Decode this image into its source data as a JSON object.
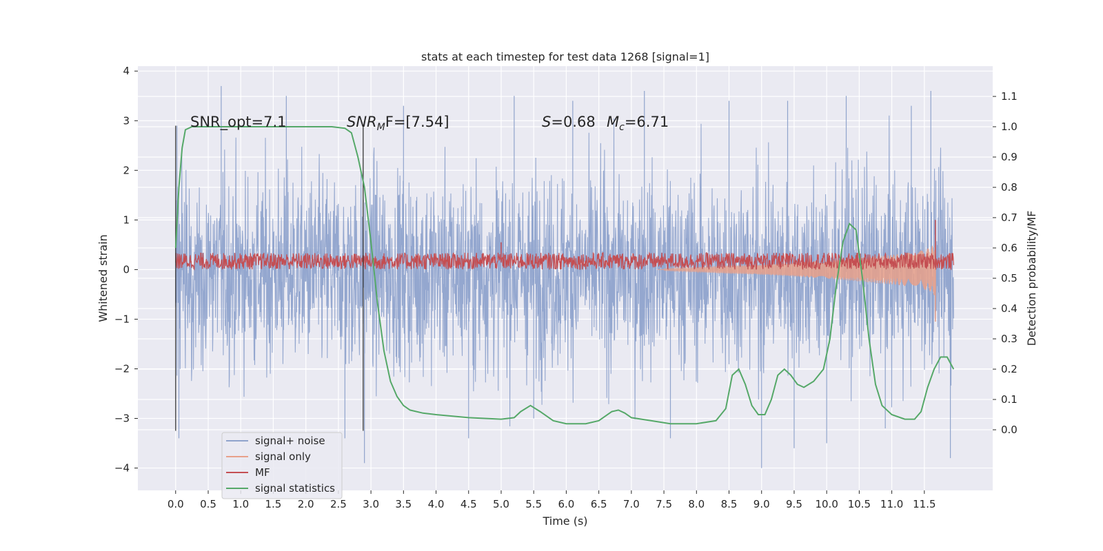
{
  "chart_data": {
    "type": "line",
    "title": "stats at each timestep for test data 1268 [signal=1]",
    "xlabel": "Time (s)",
    "ylabel": "Whitened strain",
    "ylabel_right": "Detection probability/MF",
    "xlim": [
      -0.58,
      12.55
    ],
    "ylim": [
      -4.45,
      4.1
    ],
    "ylim_right": [
      -0.2,
      1.2
    ],
    "x_ticks": [
      "0.0",
      "0.5",
      "1.0",
      "1.5",
      "2.0",
      "2.5",
      "3.0",
      "3.5",
      "4.0",
      "4.5",
      "5.0",
      "5.5",
      "6.0",
      "6.5",
      "7.0",
      "7.5",
      "8.0",
      "8.5",
      "9.0",
      "9.5",
      "10.0",
      "10.5",
      "11.0",
      "11.5"
    ],
    "y_ticks": [
      "4",
      "3",
      "2",
      "1",
      "0",
      "−1",
      "−2",
      "−3",
      "−4"
    ],
    "y_ticks_right": [
      "1.1",
      "1.0",
      "0.9",
      "0.8",
      "0.7",
      "0.6",
      "0.5",
      "0.4",
      "0.3",
      "0.2",
      "0.1",
      "0.0"
    ],
    "grid": true,
    "legend_position": "lower-left",
    "annotations": {
      "snr_opt": "SNR_opt=7.1",
      "snr_mf_symbol": "SNR",
      "snr_mf_sub": "M",
      "snr_mf_rest": "F=[7.54]",
      "s_symbol": "S",
      "s_value": "=0.68",
      "mc_symbol": "M",
      "mc_sub": "c",
      "mc_value": "=6.71"
    },
    "vlines_x": [
      0.0,
      2.88
    ],
    "series": [
      {
        "name": "signal+ noise",
        "color": "#8fa3cc",
        "axis": "left",
        "x_range": [
          0.0,
          11.95
        ],
        "typical_band": [
          -1.9,
          1.8
        ],
        "peaks": [
          [
            0.02,
            2.9
          ],
          [
            0.7,
            3.7
          ],
          [
            1.7,
            3.5
          ],
          [
            3.5,
            3.3
          ],
          [
            5.2,
            3.5
          ],
          [
            6.1,
            3.4
          ],
          [
            7.2,
            3.6
          ],
          [
            8.5,
            3.4
          ],
          [
            9.4,
            3.4
          ],
          [
            10.3,
            3.5
          ],
          [
            11.3,
            3.3
          ],
          [
            11.6,
            3.6
          ]
        ],
        "troughs": [
          [
            0.05,
            -3.4
          ],
          [
            2.6,
            -3.4
          ],
          [
            2.9,
            -3.9
          ],
          [
            4.5,
            -3.4
          ],
          [
            5.5,
            -3.0
          ],
          [
            7.6,
            -3.4
          ],
          [
            9.0,
            -4.0
          ],
          [
            9.5,
            -3.6
          ],
          [
            10.0,
            -3.5
          ],
          [
            10.9,
            -3.2
          ],
          [
            11.9,
            -3.8
          ]
        ]
      },
      {
        "name": "signal only",
        "color": "#e8a08a",
        "axis": "left",
        "envelope": [
          [
            7.5,
            0.02
          ],
          [
            8.0,
            0.05
          ],
          [
            8.5,
            0.08
          ],
          [
            9.0,
            0.1
          ],
          [
            9.5,
            0.14
          ],
          [
            10.0,
            0.18
          ],
          [
            10.5,
            0.24
          ],
          [
            11.0,
            0.3
          ],
          [
            11.4,
            0.36
          ],
          [
            11.6,
            0.45
          ],
          [
            11.67,
            0.55
          ],
          [
            11.68,
            0.0
          ]
        ],
        "lower_extreme": -1.05
      },
      {
        "name": "MF",
        "color": "#c44e52",
        "axis": "left",
        "mean": 0.17,
        "spread": 0.17,
        "spikes": [
          [
            5.0,
            0.55
          ],
          [
            11.67,
            1.0
          ]
        ],
        "x_range": [
          0.0,
          11.95
        ]
      },
      {
        "name": "signal statistics",
        "color": "#55a868",
        "axis": "right",
        "x": [
          0.0,
          0.05,
          0.1,
          0.15,
          0.25,
          0.5,
          1.0,
          1.5,
          2.0,
          2.4,
          2.6,
          2.7,
          2.8,
          2.9,
          3.0,
          3.1,
          3.2,
          3.3,
          3.4,
          3.5,
          3.6,
          3.8,
          4.0,
          4.5,
          5.0,
          5.2,
          5.3,
          5.45,
          5.6,
          5.8,
          6.0,
          6.3,
          6.5,
          6.7,
          6.8,
          6.9,
          7.0,
          7.3,
          7.6,
          8.0,
          8.3,
          8.45,
          8.55,
          8.65,
          8.75,
          8.85,
          8.95,
          9.05,
          9.15,
          9.25,
          9.35,
          9.45,
          9.55,
          9.65,
          9.8,
          9.95,
          10.05,
          10.15,
          10.25,
          10.35,
          10.45,
          10.55,
          10.65,
          10.75,
          10.85,
          11.0,
          11.2,
          11.35,
          11.45,
          11.55,
          11.65,
          11.75,
          11.85,
          11.95
        ],
        "values": [
          0.6,
          0.8,
          0.93,
          0.99,
          1.0,
          1.0,
          1.0,
          1.0,
          1.0,
          1.0,
          0.995,
          0.98,
          0.9,
          0.8,
          0.62,
          0.42,
          0.26,
          0.16,
          0.11,
          0.08,
          0.065,
          0.055,
          0.05,
          0.04,
          0.035,
          0.04,
          0.06,
          0.08,
          0.06,
          0.03,
          0.02,
          0.02,
          0.03,
          0.06,
          0.065,
          0.055,
          0.04,
          0.03,
          0.02,
          0.02,
          0.03,
          0.07,
          0.18,
          0.2,
          0.15,
          0.08,
          0.05,
          0.05,
          0.1,
          0.18,
          0.2,
          0.18,
          0.15,
          0.14,
          0.16,
          0.2,
          0.3,
          0.48,
          0.62,
          0.68,
          0.66,
          0.5,
          0.3,
          0.15,
          0.08,
          0.05,
          0.035,
          0.035,
          0.06,
          0.14,
          0.2,
          0.24,
          0.24,
          0.2
        ]
      }
    ]
  }
}
